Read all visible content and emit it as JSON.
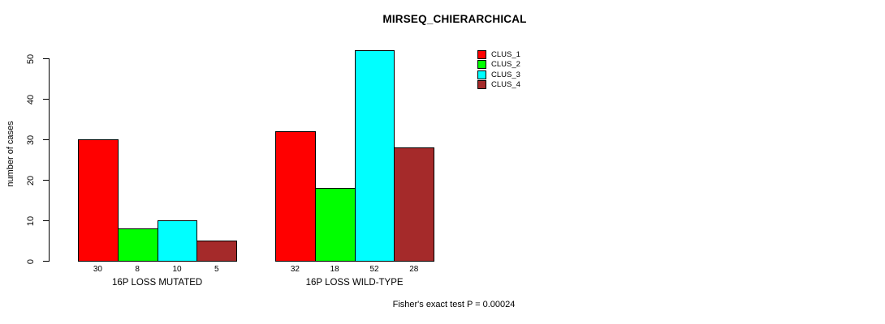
{
  "chart_data": {
    "type": "bar",
    "title": "MIRSEQ_CHIERARCHICAL",
    "ylabel": "number of cases",
    "xlabel": "",
    "ylim": [
      0,
      50
    ],
    "yticks": [
      0,
      10,
      20,
      30,
      40,
      50
    ],
    "grid": false,
    "legend_position": "top-right",
    "categories": [
      "16P LOSS MUTATED",
      "16P LOSS WILD-TYPE"
    ],
    "series": [
      {
        "name": "CLUS_1",
        "color": "#ff0000",
        "values": [
          30,
          32
        ]
      },
      {
        "name": "CLUS_2",
        "color": "#00ff00",
        "values": [
          8,
          18
        ]
      },
      {
        "name": "CLUS_3",
        "color": "#00ffff",
        "values": [
          10,
          52
        ]
      },
      {
        "name": "CLUS_4",
        "color": "#a52a2a",
        "values": [
          5,
          28
        ]
      }
    ],
    "bar_value_labels": {
      "16P LOSS MUTATED": [
        30,
        8,
        10,
        5
      ],
      "16P LOSS WILD-TYPE": [
        32,
        18,
        52,
        28
      ]
    },
    "annotation": "Fisher's exact test P = 0.00024"
  }
}
